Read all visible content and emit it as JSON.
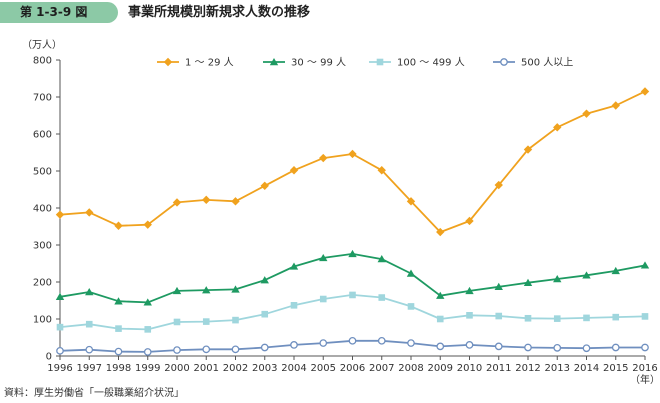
{
  "figure": {
    "number": "第 1-3-9 図",
    "title": "事業所規模別新規求人数の推移",
    "source": "資料：厚生労働省「一般職業紹介状況」"
  },
  "chart_data": {
    "type": "line",
    "title": "事業所規模別新規求人数の推移",
    "ylabel": "（万人）",
    "xlabel": "（年）",
    "ylim": [
      0,
      800
    ],
    "yticks": [
      0,
      100,
      200,
      300,
      400,
      500,
      600,
      700,
      800
    ],
    "grid": false,
    "legend_position": "top",
    "x": [
      "1996",
      "1997",
      "1998",
      "1999",
      "2000",
      "2001",
      "2002",
      "2003",
      "2004",
      "2005",
      "2006",
      "2007",
      "2008",
      "2009",
      "2010",
      "2011",
      "2012",
      "2013",
      "2014",
      "2015",
      "2016"
    ],
    "series": [
      {
        "name": "1 ～ 29 人",
        "color": "#f0a21e",
        "marker": "diamond",
        "values": [
          382,
          388,
          352,
          355,
          415,
          422,
          418,
          460,
          502,
          535,
          546,
          502,
          418,
          335,
          365,
          462,
          558,
          618,
          655,
          677,
          715
        ]
      },
      {
        "name": "30 ～ 99 人",
        "color": "#1e9a62",
        "marker": "triangle",
        "values": [
          160,
          173,
          148,
          145,
          176,
          178,
          180,
          205,
          242,
          265,
          276,
          262,
          223,
          163,
          176,
          187,
          198,
          208,
          218,
          230,
          245
        ]
      },
      {
        "name": "100 ～ 499 人",
        "color": "#9fd6dd",
        "marker": "square",
        "values": [
          78,
          86,
          74,
          72,
          92,
          93,
          97,
          113,
          137,
          154,
          165,
          158,
          134,
          100,
          110,
          108,
          102,
          101,
          103,
          105,
          107
        ]
      },
      {
        "name": "500 人以上",
        "color": "#6f8fbf",
        "marker": "circle",
        "values": [
          14,
          17,
          12,
          11,
          16,
          18,
          18,
          23,
          30,
          35,
          41,
          41,
          35,
          26,
          30,
          26,
          23,
          22,
          21,
          23,
          23
        ]
      }
    ]
  }
}
